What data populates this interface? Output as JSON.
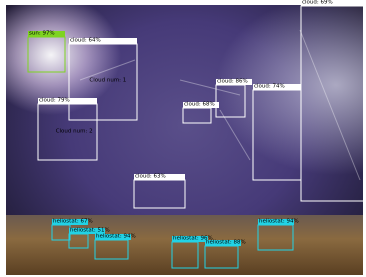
{
  "detections": [
    {
      "label": "sun: 97%"
    },
    {
      "label": "cloud: 64%",
      "info": [
        "Cloud num: 1"
      ]
    },
    {
      "label": "cloud: 79%",
      "info": [
        "Cloud num: 2"
      ]
    },
    {
      "label": "cloud: 68%"
    },
    {
      "label": "cloud: 86%"
    },
    {
      "label": "cloud: 74%"
    },
    {
      "label": "cloud: 69%"
    },
    {
      "label": "cloud: 63%"
    },
    {
      "label": "heliostat: 67%"
    },
    {
      "label": "heliostat: 51%"
    },
    {
      "label": "heliostat: 94%"
    },
    {
      "label": "heliostat: 96%"
    },
    {
      "label": "heliostat: 88%"
    },
    {
      "label": "heliostat: 94%"
    }
  ]
}
